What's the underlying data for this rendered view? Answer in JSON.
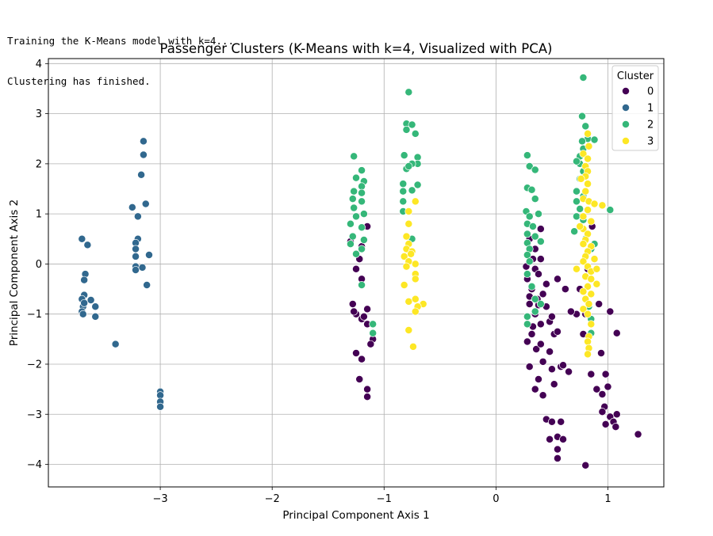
{
  "console": {
    "lines": [
      "Training the K-Means model with k=4...",
      "Clustering has finished."
    ]
  },
  "chart_data": {
    "type": "scatter",
    "title": "Passenger Clusters (K-Means with k=4, Visualized with PCA)",
    "xlabel": "Principal Component Axis 1",
    "ylabel": "Principal Component Axis 2",
    "xlim": [
      -4.0,
      1.5
    ],
    "ylim": [
      -4.45,
      4.1
    ],
    "xticks": [
      -3,
      -2,
      -1,
      0,
      1
    ],
    "yticks": [
      -4,
      -3,
      -2,
      -1,
      0,
      1,
      2,
      3,
      4
    ],
    "grid": true,
    "legend": {
      "title": "Cluster",
      "position": "top-right"
    },
    "series": [
      {
        "name": "0",
        "color": "#440154",
        "points": [
          [
            -1.15,
            0.75
          ],
          [
            -1.2,
            0.35
          ],
          [
            -1.22,
            0.1
          ],
          [
            -1.25,
            -0.1
          ],
          [
            -1.2,
            -0.3
          ],
          [
            -1.28,
            -0.8
          ],
          [
            -1.25,
            -1.0
          ],
          [
            -1.2,
            -1.1
          ],
          [
            -1.15,
            -0.9
          ],
          [
            -1.15,
            -1.2
          ],
          [
            -1.25,
            -1.78
          ],
          [
            -1.2,
            -1.9
          ],
          [
            -1.1,
            -1.5
          ],
          [
            -1.22,
            -2.3
          ],
          [
            -1.15,
            -2.5
          ],
          [
            -1.15,
            -2.65
          ],
          [
            -1.12,
            -1.6
          ],
          [
            -1.27,
            -0.95
          ],
          [
            -1.18,
            -1.05
          ],
          [
            -1.3,
            0.45
          ],
          [
            0.3,
            0.5
          ],
          [
            0.33,
            0.1
          ],
          [
            0.35,
            -0.1
          ],
          [
            0.28,
            -0.3
          ],
          [
            0.32,
            -0.5
          ],
          [
            0.3,
            -0.8
          ],
          [
            0.35,
            -1.0
          ],
          [
            0.4,
            -1.2
          ],
          [
            0.32,
            -1.4
          ],
          [
            0.28,
            -1.55
          ],
          [
            0.36,
            -1.7
          ],
          [
            0.3,
            -2.05
          ],
          [
            0.38,
            -2.3
          ],
          [
            0.35,
            -2.5
          ],
          [
            0.42,
            -2.62
          ],
          [
            0.45,
            -3.1
          ],
          [
            0.48,
            -3.5
          ],
          [
            0.5,
            -3.15
          ],
          [
            0.55,
            -3.45
          ],
          [
            0.55,
            -3.7
          ],
          [
            0.55,
            -3.88
          ],
          [
            0.6,
            -3.5
          ],
          [
            0.58,
            -3.15
          ],
          [
            0.42,
            -1.95
          ],
          [
            0.5,
            -2.1
          ],
          [
            0.52,
            -2.4
          ],
          [
            0.58,
            -2.05
          ],
          [
            0.6,
            -2.02
          ],
          [
            0.65,
            -2.15
          ],
          [
            0.4,
            0.1
          ],
          [
            0.38,
            -0.2
          ],
          [
            0.42,
            -0.6
          ],
          [
            0.45,
            -0.85
          ],
          [
            0.48,
            -1.15
          ],
          [
            0.52,
            -1.4
          ],
          [
            0.45,
            -0.4
          ],
          [
            0.35,
            0.3
          ],
          [
            0.38,
            -0.82
          ],
          [
            0.33,
            -1.25
          ],
          [
            0.3,
            -0.65
          ],
          [
            0.27,
            -0.05
          ],
          [
            0.4,
            -1.6
          ],
          [
            0.48,
            -1.75
          ],
          [
            0.5,
            -1.05
          ],
          [
            0.4,
            0.7
          ],
          [
            0.37,
            -0.7
          ],
          [
            0.55,
            -1.35
          ],
          [
            0.55,
            -0.3
          ],
          [
            0.62,
            -0.5
          ],
          [
            0.72,
            -1.0
          ],
          [
            0.8,
            -1.0
          ],
          [
            0.78,
            -1.4
          ],
          [
            0.85,
            -2.2
          ],
          [
            0.9,
            -2.5
          ],
          [
            0.94,
            -1.78
          ],
          [
            0.95,
            -2.6
          ],
          [
            0.97,
            -2.85
          ],
          [
            1.0,
            -2.45
          ],
          [
            0.98,
            -2.2
          ],
          [
            1.02,
            -3.05
          ],
          [
            1.05,
            -3.15
          ],
          [
            1.08,
            -3.0
          ],
          [
            1.07,
            -3.25
          ],
          [
            1.08,
            -1.38
          ],
          [
            1.02,
            -0.95
          ],
          [
            0.98,
            -3.2
          ],
          [
            0.95,
            -2.95
          ],
          [
            1.27,
            -3.4
          ],
          [
            0.8,
            -4.02
          ],
          [
            0.86,
            0.75
          ],
          [
            0.82,
            -0.1
          ],
          [
            0.75,
            -0.5
          ],
          [
            0.92,
            -0.8
          ],
          [
            0.67,
            -0.95
          ]
        ]
      },
      {
        "name": "1",
        "color": "#31688e",
        "points": [
          [
            -3.7,
            0.5
          ],
          [
            -3.65,
            0.38
          ],
          [
            -3.67,
            -0.2
          ],
          [
            -3.68,
            -0.32
          ],
          [
            -3.68,
            -0.62
          ],
          [
            -3.7,
            -0.7
          ],
          [
            -3.69,
            -0.85
          ],
          [
            -3.7,
            -0.95
          ],
          [
            -3.69,
            -1.0
          ],
          [
            -3.62,
            -0.72
          ],
          [
            -3.58,
            -0.85
          ],
          [
            -3.58,
            -1.05
          ],
          [
            -3.4,
            -1.6
          ],
          [
            -3.15,
            2.45
          ],
          [
            -3.15,
            2.18
          ],
          [
            -3.17,
            1.78
          ],
          [
            -3.13,
            1.2
          ],
          [
            -3.25,
            1.13
          ],
          [
            -3.2,
            0.95
          ],
          [
            -3.2,
            0.5
          ],
          [
            -3.22,
            0.42
          ],
          [
            -3.22,
            0.3
          ],
          [
            -3.22,
            0.15
          ],
          [
            -3.1,
            0.18
          ],
          [
            -3.22,
            -0.05
          ],
          [
            -3.22,
            -0.12
          ],
          [
            -3.16,
            -0.07
          ],
          [
            -3.12,
            -0.42
          ],
          [
            -3.0,
            -2.55
          ],
          [
            -3.0,
            -2.62
          ],
          [
            -3.0,
            -2.75
          ],
          [
            -3.0,
            -2.85
          ],
          [
            -3.68,
            -0.78
          ]
        ]
      },
      {
        "name": "2",
        "color": "#35b779",
        "points": [
          [
            -1.27,
            2.15
          ],
          [
            -1.2,
            1.87
          ],
          [
            -1.25,
            1.72
          ],
          [
            -1.18,
            1.65
          ],
          [
            -1.2,
            1.55
          ],
          [
            -1.27,
            1.45
          ],
          [
            -1.2,
            1.42
          ],
          [
            -1.28,
            1.3
          ],
          [
            -1.2,
            1.25
          ],
          [
            -1.27,
            1.12
          ],
          [
            -1.18,
            1.0
          ],
          [
            -1.25,
            0.95
          ],
          [
            -1.3,
            0.8
          ],
          [
            -1.2,
            0.73
          ],
          [
            -1.28,
            0.55
          ],
          [
            -1.18,
            0.48
          ],
          [
            -1.3,
            0.4
          ],
          [
            -1.2,
            0.3
          ],
          [
            -1.25,
            0.2
          ],
          [
            -1.1,
            -1.2
          ],
          [
            -1.1,
            -1.38
          ],
          [
            -1.2,
            -0.42
          ],
          [
            -0.78,
            3.43
          ],
          [
            -0.8,
            2.8
          ],
          [
            -0.75,
            2.78
          ],
          [
            -0.8,
            2.68
          ],
          [
            -0.72,
            2.6
          ],
          [
            -0.82,
            2.17
          ],
          [
            -0.7,
            2.13
          ],
          [
            -0.7,
            2.0
          ],
          [
            -0.75,
            2.0
          ],
          [
            -0.8,
            1.9
          ],
          [
            -0.78,
            1.95
          ],
          [
            -0.83,
            1.6
          ],
          [
            -0.83,
            1.45
          ],
          [
            -0.83,
            1.25
          ],
          [
            -0.7,
            1.58
          ],
          [
            -0.83,
            1.05
          ],
          [
            -0.75,
            0.5
          ],
          [
            -0.75,
            1.47
          ],
          [
            0.28,
            2.17
          ],
          [
            0.3,
            1.95
          ],
          [
            0.35,
            1.88
          ],
          [
            0.28,
            1.52
          ],
          [
            0.32,
            1.48
          ],
          [
            0.35,
            1.3
          ],
          [
            0.27,
            1.05
          ],
          [
            0.3,
            0.95
          ],
          [
            0.28,
            0.8
          ],
          [
            0.33,
            0.75
          ],
          [
            0.28,
            0.6
          ],
          [
            0.35,
            0.55
          ],
          [
            0.28,
            0.42
          ],
          [
            0.3,
            0.3
          ],
          [
            0.28,
            0.18
          ],
          [
            0.3,
            0.05
          ],
          [
            0.38,
            1.0
          ],
          [
            0.28,
            -0.2
          ],
          [
            0.32,
            -0.45
          ],
          [
            0.35,
            -0.7
          ],
          [
            0.28,
            -1.05
          ],
          [
            0.28,
            -1.2
          ],
          [
            0.35,
            -0.95
          ],
          [
            0.4,
            -0.8
          ],
          [
            0.4,
            0.45
          ],
          [
            0.78,
            3.72
          ],
          [
            0.77,
            2.95
          ],
          [
            0.8,
            2.75
          ],
          [
            0.82,
            2.5
          ],
          [
            0.88,
            2.48
          ],
          [
            0.77,
            2.45
          ],
          [
            0.78,
            2.3
          ],
          [
            0.75,
            2.15
          ],
          [
            0.75,
            2.0
          ],
          [
            0.78,
            1.85
          ],
          [
            0.75,
            1.7
          ],
          [
            0.72,
            1.45
          ],
          [
            0.78,
            1.35
          ],
          [
            0.72,
            1.25
          ],
          [
            0.75,
            1.1
          ],
          [
            0.72,
            0.95
          ],
          [
            0.78,
            0.88
          ],
          [
            0.8,
            0.5
          ],
          [
            0.85,
            0.3
          ],
          [
            0.7,
            0.65
          ],
          [
            1.02,
            1.08
          ],
          [
            0.78,
            -0.9
          ],
          [
            0.83,
            -0.85
          ],
          [
            0.85,
            -1.38
          ],
          [
            0.85,
            -1.1
          ],
          [
            0.88,
            0.4
          ],
          [
            0.72,
            2.05
          ]
        ]
      },
      {
        "name": "3",
        "color": "#fde725",
        "points": [
          [
            -0.78,
            1.05
          ],
          [
            -0.72,
            1.25
          ],
          [
            -0.78,
            0.8
          ],
          [
            -0.8,
            0.55
          ],
          [
            -0.78,
            0.4
          ],
          [
            -0.8,
            0.3
          ],
          [
            -0.75,
            0.25
          ],
          [
            -0.82,
            0.15
          ],
          [
            -0.78,
            0.05
          ],
          [
            -0.72,
            0.0
          ],
          [
            -0.8,
            -0.05
          ],
          [
            -0.72,
            -0.2
          ],
          [
            -0.72,
            -0.3
          ],
          [
            -0.82,
            -0.42
          ],
          [
            -0.78,
            -0.75
          ],
          [
            -0.72,
            -0.7
          ],
          [
            -0.65,
            -0.8
          ],
          [
            -0.7,
            -0.85
          ],
          [
            -0.72,
            -0.95
          ],
          [
            -0.78,
            -1.32
          ],
          [
            -0.74,
            -1.65
          ],
          [
            -0.76,
            0.2
          ],
          [
            0.82,
            2.6
          ],
          [
            0.83,
            2.35
          ],
          [
            0.78,
            2.2
          ],
          [
            0.82,
            2.1
          ],
          [
            0.8,
            1.95
          ],
          [
            0.82,
            1.85
          ],
          [
            0.8,
            1.75
          ],
          [
            0.82,
            1.6
          ],
          [
            0.8,
            1.45
          ],
          [
            0.78,
            1.3
          ],
          [
            0.83,
            1.25
          ],
          [
            0.88,
            1.2
          ],
          [
            0.95,
            1.17
          ],
          [
            0.82,
            1.08
          ],
          [
            0.78,
            0.95
          ],
          [
            0.85,
            0.85
          ],
          [
            0.78,
            0.7
          ],
          [
            0.82,
            0.6
          ],
          [
            0.8,
            0.48
          ],
          [
            0.78,
            0.4
          ],
          [
            0.85,
            0.35
          ],
          [
            0.82,
            0.25
          ],
          [
            0.8,
            0.15
          ],
          [
            0.88,
            0.1
          ],
          [
            0.78,
            0.05
          ],
          [
            0.82,
            -0.05
          ],
          [
            0.85,
            -0.15
          ],
          [
            0.8,
            -0.25
          ],
          [
            0.85,
            -0.3
          ],
          [
            0.9,
            -0.4
          ],
          [
            0.82,
            -0.45
          ],
          [
            0.78,
            -0.55
          ],
          [
            0.85,
            -0.6
          ],
          [
            0.8,
            -0.7
          ],
          [
            0.83,
            -0.8
          ],
          [
            0.78,
            -0.9
          ],
          [
            0.82,
            -1.0
          ],
          [
            0.85,
            -1.2
          ],
          [
            0.83,
            -1.45
          ],
          [
            0.82,
            -1.55
          ],
          [
            0.83,
            -1.68
          ],
          [
            0.82,
            -1.8
          ],
          [
            0.72,
            -0.1
          ],
          [
            0.75,
            0.75
          ],
          [
            0.9,
            -0.1
          ],
          [
            0.76,
            1.7
          ]
        ]
      }
    ]
  }
}
